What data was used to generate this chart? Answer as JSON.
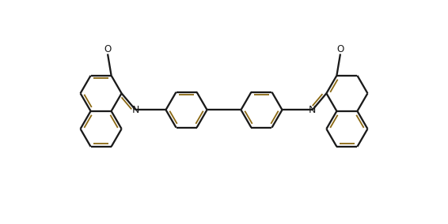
{
  "bg_color": "#ffffff",
  "lc": "#1a1a1a",
  "dc": "#8B6914",
  "lw": 1.65,
  "fig_w": 5.66,
  "fig_h": 2.84,
  "dpi": 100,
  "xlim": [
    -3.1,
    3.1
  ],
  "ylim": [
    -1.45,
    1.55
  ],
  "r": 0.285,
  "N_fontsize": 9.0,
  "O_fontsize": 8.5,
  "label_left_O": "O",
  "label_right_O": "O"
}
